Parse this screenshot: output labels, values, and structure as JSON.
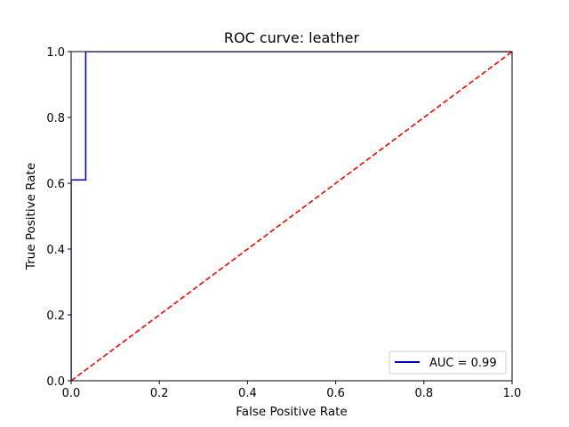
{
  "chart_data": {
    "type": "line",
    "title": "ROC curve: leather",
    "xlabel": "False Positive Rate",
    "ylabel": "True Positive Rate",
    "xlim": [
      0.0,
      1.0
    ],
    "ylim": [
      0.0,
      1.0
    ],
    "xticks": [
      "0.0",
      "0.2",
      "0.4",
      "0.6",
      "0.8",
      "1.0"
    ],
    "yticks": [
      "0.0",
      "0.2",
      "0.4",
      "0.6",
      "0.8",
      "1.0"
    ],
    "grid": false,
    "legend_position": "lower-right",
    "series": [
      {
        "name": "AUC = 0.99",
        "color": "#0000cc",
        "style": "solid",
        "x": [
          0.0,
          0.0,
          0.0,
          0.033,
          0.033,
          1.0
        ],
        "y": [
          0.0,
          0.61,
          0.61,
          0.61,
          1.0,
          1.0
        ]
      },
      {
        "name": "",
        "color": "#ff0000",
        "style": "dashed",
        "x": [
          0.0,
          1.0
        ],
        "y": [
          0.0,
          1.0
        ]
      }
    ]
  }
}
